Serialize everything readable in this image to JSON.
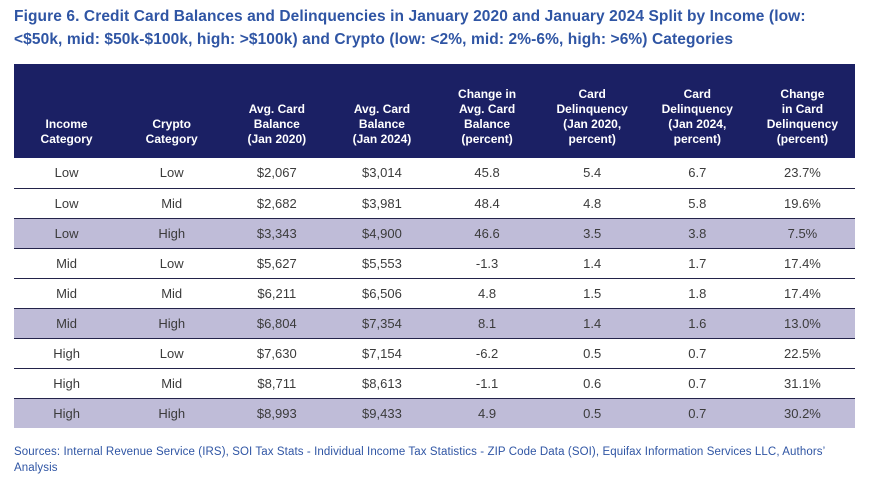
{
  "figure": {
    "title": "Figure 6. Credit Card Balances and Delinquencies in January 2020 and January 2024 Split by Income (low:\n<$50k, mid: $50k-$100k, high: >$100k) and Crypto (low: <2%, mid: 2%-6%, high: >6%) Categories",
    "sources": "Sources: Internal Revenue Service (IRS), SOI Tax Stats - Individual Income Tax Statistics - ZIP Code Data (SOI), Equifax Information Services LLC, Authors’\nAnalysis"
  },
  "colors": {
    "header_bg": "#1B2064",
    "header_text": "#FFFFFF",
    "highlight_row_bg": "#BFBCD8",
    "row_separator": "#23234A",
    "body_text": "#3B3B3B",
    "accent_blue": "#2F55A4"
  },
  "chart_data": {
    "type": "table",
    "title": "Credit Card Balances and Delinquencies in January 2020 and January 2024 Split by Income and Crypto Categories",
    "columns": [
      "Income\nCategory",
      "Crypto\nCategory",
      "Avg. Card\nBalance\n(Jan 2020)",
      "Avg. Card\nBalance\n(Jan 2024)",
      "Change in\nAvg. Card\nBalance\n(percent)",
      "Card\nDelinquency\n(Jan 2020,\npercent)",
      "Card\nDelinquency\n(Jan 2024,\npercent)",
      "Change\nin Card\nDelinquency\n(percent)"
    ],
    "rows": [
      [
        "Low",
        "Low",
        "$2,067",
        "$3,014",
        "45.8",
        "5.4",
        "6.7",
        "23.7%"
      ],
      [
        "Low",
        "Mid",
        "$2,682",
        "$3,981",
        "48.4",
        "4.8",
        "5.8",
        "19.6%"
      ],
      [
        "Low",
        "High",
        "$3,343",
        "$4,900",
        "46.6",
        "3.5",
        "3.8",
        "7.5%"
      ],
      [
        "Mid",
        "Low",
        "$5,627",
        "$5,553",
        "-1.3",
        "1.4",
        "1.7",
        "17.4%"
      ],
      [
        "Mid",
        "Mid",
        "$6,211",
        "$6,506",
        "4.8",
        "1.5",
        "1.8",
        "17.4%"
      ],
      [
        "Mid",
        "High",
        "$6,804",
        "$7,354",
        "8.1",
        "1.4",
        "1.6",
        "13.0%"
      ],
      [
        "High",
        "Low",
        "$7,630",
        "$7,154",
        "-6.2",
        "0.5",
        "0.7",
        "22.5%"
      ],
      [
        "High",
        "Mid",
        "$8,711",
        "$8,613",
        "-1.1",
        "0.6",
        "0.7",
        "31.1%"
      ],
      [
        "High",
        "High",
        "$8,993",
        "$9,433",
        "4.9",
        "0.5",
        "0.7",
        "30.2%"
      ]
    ],
    "highlighted_rows": [
      2,
      5,
      8
    ],
    "layout_hints": {
      "highlight_style": "every third row (High crypto category) shaded lavender",
      "columns_equal_width": true,
      "header_alignment": "bottom-center"
    }
  }
}
